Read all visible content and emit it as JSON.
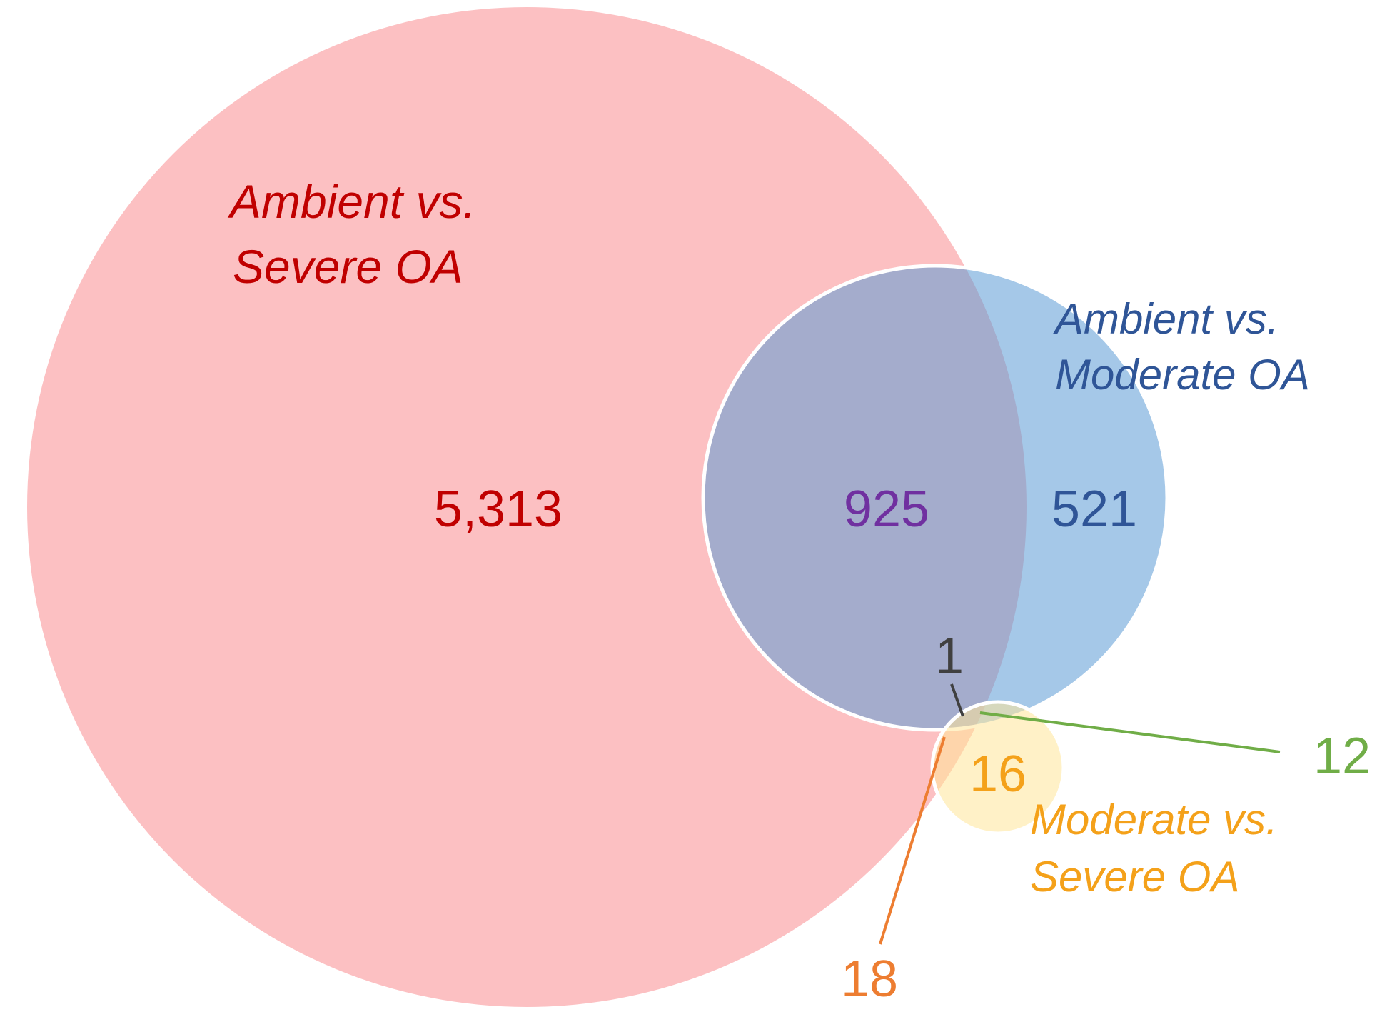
{
  "sets": [
    {
      "id": "ambient_vs_severe",
      "label_lines": [
        "Ambient vs.",
        "Severe OA"
      ],
      "fill": "#fa8c8f",
      "text_color": "#c00000"
    },
    {
      "id": "ambient_vs_moderate",
      "label_lines": [
        "Ambient vs.",
        "Moderate OA"
      ],
      "fill": "#5b9bd5",
      "text_color": "#2f5597"
    },
    {
      "id": "moderate_vs_severe",
      "label_lines": [
        "Moderate vs.",
        "Severe OA"
      ],
      "fill": "#ffe699",
      "text_color": "#f4a11a"
    }
  ],
  "regions": [
    {
      "id": "severe_only",
      "sets": [
        "ambient_vs_severe"
      ],
      "count": "5,313",
      "color": "#c00000"
    },
    {
      "id": "severe_and_moderate",
      "sets": [
        "ambient_vs_severe",
        "ambient_vs_moderate"
      ],
      "count": "925",
      "color": "#7030a0"
    },
    {
      "id": "moderate_only",
      "sets": [
        "ambient_vs_moderate"
      ],
      "count": "521",
      "color": "#2f5597"
    },
    {
      "id": "all_three",
      "sets": [
        "ambient_vs_severe",
        "ambient_vs_moderate",
        "moderate_vs_severe"
      ],
      "count": "1",
      "color": "#404040"
    },
    {
      "id": "moderate_and_modsevere",
      "sets": [
        "ambient_vs_moderate",
        "moderate_vs_severe"
      ],
      "count": "12",
      "color": "#70ad47"
    },
    {
      "id": "modsevere_only",
      "sets": [
        "moderate_vs_severe"
      ],
      "count": "16",
      "color": "#f4a11a"
    },
    {
      "id": "severe_and_modsevere",
      "sets": [
        "ambient_vs_severe",
        "moderate_vs_severe"
      ],
      "count": "18",
      "color": "#ed7d31"
    }
  ]
}
